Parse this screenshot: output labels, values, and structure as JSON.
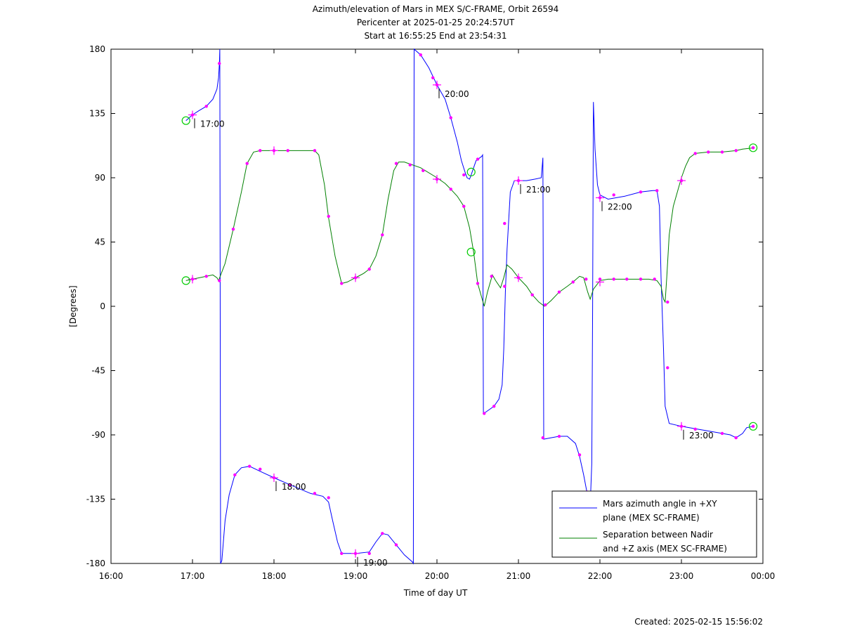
{
  "chart_data": {
    "type": "line",
    "title_lines": [
      "Azimuth/elevation of Mars in MEX S/C-FRAME,  Orbit 26594",
      "Pericenter at 2025-01-25 20:24:57UT",
      "Start at 16:55:25 End at 23:54:31"
    ],
    "xlabel": "Time of day UT",
    "ylabel": "[Degrees]",
    "xlim": [
      16.0,
      24.0
    ],
    "ylim": [
      -180,
      180
    ],
    "x_ticks": [
      16,
      17,
      18,
      19,
      20,
      21,
      22,
      23,
      24
    ],
    "x_tick_labels": [
      "16:00",
      "17:00",
      "18:00",
      "19:00",
      "20:00",
      "21:00",
      "22:00",
      "23:00",
      "00:00"
    ],
    "y_ticks": [
      -180,
      -135,
      -90,
      -45,
      0,
      45,
      90,
      135,
      180
    ],
    "y_tick_labels": [
      "-180",
      "-135",
      "-90",
      "-45",
      "0",
      "45",
      "90",
      "135",
      "180"
    ],
    "legend_position": "bottom-right",
    "colors": {
      "azimuth": "#0000ff",
      "separation": "#008000",
      "markers": "#ff00ff",
      "circles": "#00cc00"
    },
    "series": [
      {
        "name_lines": [
          "Mars azimuth angle in +XY",
          "plane (MEX SC-FRAME)"
        ],
        "color": "#0000ff",
        "points": [
          [
            16.92,
            130
          ],
          [
            17.0,
            134
          ],
          [
            17.08,
            137
          ],
          [
            17.17,
            140
          ],
          [
            17.25,
            145
          ],
          [
            17.3,
            152
          ],
          [
            17.32,
            160
          ],
          [
            17.33,
            170
          ],
          [
            17.335,
            180
          ],
          [
            17.345,
            -180
          ],
          [
            17.36,
            -178
          ],
          [
            17.4,
            -150
          ],
          [
            17.45,
            -132
          ],
          [
            17.52,
            -118
          ],
          [
            17.6,
            -113
          ],
          [
            17.7,
            -112
          ],
          [
            17.85,
            -116
          ],
          [
            18.0,
            -120
          ],
          [
            18.2,
            -125
          ],
          [
            18.45,
            -131
          ],
          [
            18.6,
            -133
          ],
          [
            18.67,
            -137
          ],
          [
            18.72,
            -150
          ],
          [
            18.78,
            -165
          ],
          [
            18.83,
            -173
          ],
          [
            19.0,
            -173
          ],
          [
            19.17,
            -172
          ],
          [
            19.25,
            -165
          ],
          [
            19.33,
            -159
          ],
          [
            19.4,
            -160
          ],
          [
            19.5,
            -167
          ],
          [
            19.6,
            -174
          ],
          [
            19.7,
            -179
          ],
          [
            19.71,
            -180
          ],
          [
            19.72,
            180
          ],
          [
            19.8,
            176
          ],
          [
            19.9,
            167
          ],
          [
            20.0,
            155
          ],
          [
            20.1,
            145
          ],
          [
            20.17,
            132
          ],
          [
            20.25,
            115
          ],
          [
            20.3,
            102
          ],
          [
            20.35,
            93
          ],
          [
            20.37,
            90
          ],
          [
            20.4,
            89
          ],
          [
            20.42,
            92
          ],
          [
            20.48,
            102
          ],
          [
            20.55,
            105
          ],
          [
            20.56,
            106
          ],
          [
            20.57,
            -75
          ],
          [
            20.6,
            -74
          ],
          [
            20.7,
            -70
          ],
          [
            20.76,
            -65
          ],
          [
            20.8,
            -55
          ],
          [
            20.82,
            -30
          ],
          [
            20.84,
            10
          ],
          [
            20.86,
            40
          ],
          [
            20.88,
            60
          ],
          [
            20.9,
            80
          ],
          [
            20.95,
            88
          ],
          [
            21.1,
            88
          ],
          [
            21.2,
            89
          ],
          [
            21.28,
            90
          ],
          [
            21.3,
            104
          ],
          [
            21.31,
            -93
          ],
          [
            21.4,
            -92
          ],
          [
            21.5,
            -91
          ],
          [
            21.6,
            -91
          ],
          [
            21.7,
            -96
          ],
          [
            21.75,
            -105
          ],
          [
            21.8,
            -118
          ],
          [
            21.85,
            -133
          ],
          [
            21.88,
            -140
          ],
          [
            21.9,
            -110
          ],
          [
            21.91,
            0
          ],
          [
            21.92,
            143
          ],
          [
            21.94,
            110
          ],
          [
            21.97,
            85
          ],
          [
            22.0,
            78
          ],
          [
            22.1,
            75
          ],
          [
            22.3,
            77
          ],
          [
            22.5,
            80
          ],
          [
            22.65,
            81
          ],
          [
            22.7,
            81
          ],
          [
            22.73,
            70
          ],
          [
            22.75,
            20
          ],
          [
            22.78,
            -30
          ],
          [
            22.8,
            -70
          ],
          [
            22.85,
            -82
          ],
          [
            23.0,
            -84
          ],
          [
            23.2,
            -86
          ],
          [
            23.4,
            -88
          ],
          [
            23.6,
            -90
          ],
          [
            23.67,
            -92
          ],
          [
            23.75,
            -89
          ],
          [
            23.8,
            -85
          ],
          [
            23.88,
            -84
          ]
        ]
      },
      {
        "name_lines": [
          "Separation between Nadir",
          "and +Z axis (MEX SC-FRAME)"
        ],
        "color": "#008000",
        "points": [
          [
            16.92,
            18
          ],
          [
            17.0,
            19
          ],
          [
            17.17,
            21
          ],
          [
            17.25,
            22
          ],
          [
            17.3,
            20
          ],
          [
            17.32,
            18
          ],
          [
            17.4,
            30
          ],
          [
            17.5,
            54
          ],
          [
            17.6,
            80
          ],
          [
            17.67,
            100
          ],
          [
            17.75,
            108
          ],
          [
            17.83,
            109
          ],
          [
            18.0,
            109
          ],
          [
            18.3,
            109
          ],
          [
            18.5,
            109
          ],
          [
            18.55,
            106
          ],
          [
            18.62,
            85
          ],
          [
            18.67,
            62
          ],
          [
            18.75,
            35
          ],
          [
            18.83,
            16
          ],
          [
            18.9,
            17
          ],
          [
            19.0,
            20
          ],
          [
            19.1,
            23
          ],
          [
            19.17,
            26
          ],
          [
            19.25,
            35
          ],
          [
            19.33,
            50
          ],
          [
            19.4,
            75
          ],
          [
            19.47,
            95
          ],
          [
            19.53,
            101
          ],
          [
            19.6,
            101
          ],
          [
            19.8,
            97
          ],
          [
            20.0,
            90
          ],
          [
            20.1,
            86
          ],
          [
            20.17,
            82
          ],
          [
            20.25,
            77
          ],
          [
            20.33,
            70
          ],
          [
            20.4,
            55
          ],
          [
            20.45,
            38
          ],
          [
            20.5,
            16
          ],
          [
            20.55,
            6
          ],
          [
            20.58,
            0
          ],
          [
            20.62,
            10
          ],
          [
            20.68,
            22
          ],
          [
            20.72,
            18
          ],
          [
            20.78,
            13
          ],
          [
            20.82,
            20
          ],
          [
            20.86,
            29
          ],
          [
            20.92,
            26
          ],
          [
            21.0,
            20
          ],
          [
            21.1,
            14
          ],
          [
            21.17,
            8
          ],
          [
            21.25,
            3
          ],
          [
            21.32,
            0
          ],
          [
            21.4,
            4
          ],
          [
            21.5,
            10
          ],
          [
            21.6,
            14
          ],
          [
            21.67,
            17
          ],
          [
            21.75,
            21
          ],
          [
            21.8,
            20
          ],
          [
            21.85,
            10
          ],
          [
            21.88,
            5
          ],
          [
            21.92,
            12
          ],
          [
            22.0,
            18
          ],
          [
            22.1,
            19
          ],
          [
            22.2,
            19
          ],
          [
            22.4,
            19
          ],
          [
            22.6,
            19
          ],
          [
            22.7,
            18
          ],
          [
            22.75,
            14
          ],
          [
            22.78,
            5
          ],
          [
            22.8,
            3
          ],
          [
            22.82,
            20
          ],
          [
            22.85,
            50
          ],
          [
            22.9,
            70
          ],
          [
            23.0,
            90
          ],
          [
            23.05,
            98
          ],
          [
            23.1,
            104
          ],
          [
            23.17,
            107
          ],
          [
            23.33,
            108
          ],
          [
            23.5,
            108
          ],
          [
            23.67,
            109
          ],
          [
            23.75,
            110
          ],
          [
            23.9,
            111
          ]
        ]
      }
    ],
    "markers": [
      [
        17.0,
        134
      ],
      [
        17.17,
        140
      ],
      [
        17.33,
        170
      ],
      [
        17.52,
        -118
      ],
      [
        17.7,
        -112
      ],
      [
        17.83,
        -114
      ],
      [
        18.0,
        -120
      ],
      [
        18.2,
        -125
      ],
      [
        18.5,
        -131
      ],
      [
        18.67,
        -134
      ],
      [
        18.83,
        -173
      ],
      [
        19.0,
        -173
      ],
      [
        19.17,
        -173
      ],
      [
        19.33,
        -159
      ],
      [
        19.5,
        -167
      ],
      [
        19.8,
        176
      ],
      [
        19.95,
        160
      ],
      [
        20.0,
        155
      ],
      [
        20.17,
        132
      ],
      [
        20.33,
        92
      ],
      [
        20.5,
        103
      ],
      [
        20.58,
        -75
      ],
      [
        20.7,
        -70
      ],
      [
        20.83,
        58
      ],
      [
        21.0,
        88
      ],
      [
        21.3,
        -92
      ],
      [
        21.5,
        -91
      ],
      [
        21.75,
        -104
      ],
      [
        21.84,
        -130
      ],
      [
        22.0,
        76
      ],
      [
        22.17,
        78
      ],
      [
        22.5,
        80
      ],
      [
        22.7,
        81
      ],
      [
        23.0,
        -84
      ],
      [
        23.17,
        -86
      ],
      [
        23.5,
        -89
      ],
      [
        23.67,
        -92
      ],
      [
        23.88,
        -84
      ],
      [
        17.0,
        19
      ],
      [
        17.17,
        21
      ],
      [
        17.33,
        18
      ],
      [
        17.5,
        54
      ],
      [
        17.67,
        100
      ],
      [
        17.83,
        109
      ],
      [
        18.0,
        109
      ],
      [
        18.17,
        109
      ],
      [
        18.5,
        109
      ],
      [
        18.67,
        63
      ],
      [
        18.83,
        16
      ],
      [
        19.0,
        20
      ],
      [
        19.17,
        26
      ],
      [
        19.33,
        50
      ],
      [
        19.5,
        100
      ],
      [
        19.67,
        99
      ],
      [
        19.83,
        95
      ],
      [
        20.0,
        89
      ],
      [
        20.17,
        82
      ],
      [
        20.33,
        70
      ],
      [
        20.5,
        16
      ],
      [
        20.67,
        21
      ],
      [
        20.83,
        14
      ],
      [
        21.0,
        20
      ],
      [
        21.17,
        8
      ],
      [
        21.33,
        1
      ],
      [
        21.5,
        10
      ],
      [
        21.67,
        17
      ],
      [
        21.83,
        19
      ],
      [
        22.0,
        19
      ],
      [
        22.17,
        19
      ],
      [
        22.33,
        19
      ],
      [
        22.5,
        19
      ],
      [
        22.67,
        19
      ],
      [
        22.83,
        3
      ],
      [
        22.83,
        -43
      ],
      [
        23.0,
        88
      ],
      [
        23.17,
        107
      ],
      [
        23.33,
        108
      ],
      [
        23.5,
        108
      ],
      [
        23.67,
        109
      ],
      [
        23.88,
        111
      ]
    ],
    "crosses": [
      [
        17.0,
        134
      ],
      [
        17.0,
        19
      ],
      [
        18.0,
        -120
      ],
      [
        18.0,
        109
      ],
      [
        19.0,
        -173
      ],
      [
        19.0,
        20
      ],
      [
        20.0,
        155
      ],
      [
        20.0,
        89
      ],
      [
        21.0,
        88
      ],
      [
        21.0,
        20
      ],
      [
        22.0,
        76
      ],
      [
        22.0,
        17
      ],
      [
        23.0,
        -84
      ],
      [
        23.0,
        88
      ]
    ],
    "circles": [
      [
        16.92,
        130
      ],
      [
        16.92,
        18
      ],
      [
        20.42,
        94
      ],
      [
        20.42,
        38
      ],
      [
        23.88,
        111
      ],
      [
        23.88,
        -84
      ]
    ],
    "hour_annotations": [
      {
        "label": "17:00",
        "x": 17.0,
        "y": 134
      },
      {
        "label": "18:00",
        "x": 18.0,
        "y": -120
      },
      {
        "label": "19:00",
        "x": 19.0,
        "y": -173
      },
      {
        "label": "20:00",
        "x": 20.0,
        "y": 155
      },
      {
        "label": "21:00",
        "x": 21.0,
        "y": 88
      },
      {
        "label": "22:00",
        "x": 22.0,
        "y": 76
      },
      {
        "label": "23:00",
        "x": 23.0,
        "y": -84
      }
    ],
    "footer": "Created: 2025-02-15 15:56:02"
  }
}
